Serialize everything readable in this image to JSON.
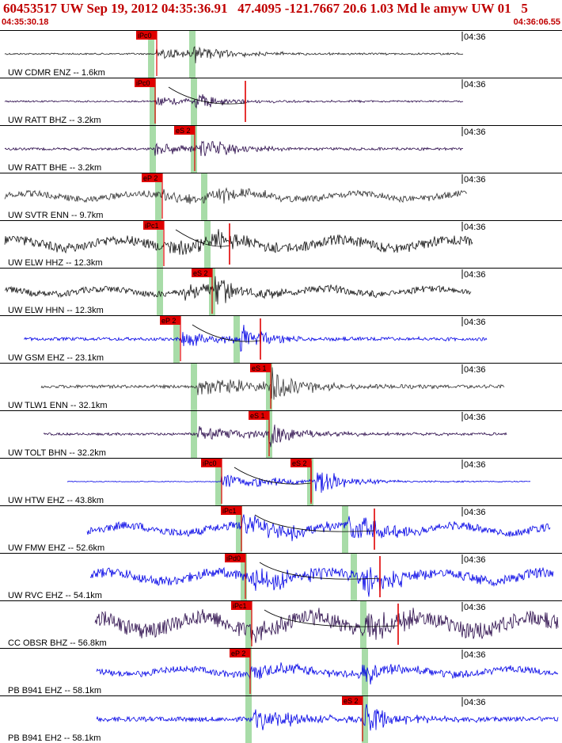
{
  "header": {
    "title": "60453517 UW Sep 19, 2012 04:35:36.91   47.4095 -121.7667 20.6 1.03 Md le amyw UW 01   5",
    "start_time": "04:35:30.18",
    "end_time": "04:36:06.55"
  },
  "minute_label": "04:36",
  "colors": {
    "pick": "#e00000",
    "window": "#a8dca8",
    "blue": "#0000e6",
    "purple": "#2a0a4a",
    "black": "#111111",
    "gray": "#333333"
  },
  "traces": [
    {
      "label": "UW CDMR ENZ -- 1.6km",
      "color": "#222222",
      "pick": "iPc0",
      "pickX": 198,
      "win": [
        191,
        243
      ],
      "sec": null,
      "secX": null,
      "start": 6,
      "end": 585,
      "onset": 198,
      "burst": 243,
      "amp": 12,
      "noise": 1,
      "curve": false
    },
    {
      "label": "UW RATT BHZ -- 3.2km",
      "color": "#2a0a4a",
      "pick": "iPc0",
      "pickX": 196,
      "win": [
        193,
        245
      ],
      "sec": null,
      "secX": 310,
      "start": 6,
      "end": 585,
      "onset": 196,
      "burst": 245,
      "amp": 10,
      "noise": 1,
      "curve": true
    },
    {
      "label": "UW RATT BHE -- 3.2km",
      "color": "#2a0a4a",
      "pick": "eS 2",
      "pickX": 246,
      "win": [
        193,
        245
      ],
      "sec": null,
      "secX": null,
      "start": 6,
      "end": 585,
      "onset": 196,
      "burst": 252,
      "amp": 14,
      "noise": 1.5,
      "curve": false
    },
    {
      "label": "UW SVTR ENN -- 9.7km",
      "color": "#333333",
      "pick": "eP 2",
      "pickX": 205,
      "win": [
        200,
        258
      ],
      "sec": null,
      "secX": null,
      "start": 6,
      "end": 590,
      "onset": 205,
      "burst": 262,
      "amp": 12,
      "noise": 4,
      "curve": false
    },
    {
      "label": "UW ELW HHZ -- 12.3km",
      "color": "#111111",
      "pick": "iPc1",
      "pickX": 207,
      "win": [
        202,
        262
      ],
      "sec": null,
      "secX": 290,
      "start": 6,
      "end": 597,
      "onset": 207,
      "burst": 266,
      "amp": 16,
      "noise": 6,
      "curve": true
    },
    {
      "label": "UW ELW HHN -- 12.3km",
      "color": "#111111",
      "pick": "eS 2",
      "pickX": 268,
      "win": [
        202,
        268
      ],
      "sec": null,
      "secX": null,
      "start": 6,
      "end": 595,
      "onset": 230,
      "burst": 272,
      "amp": 18,
      "noise": 4,
      "curve": false
    },
    {
      "label": "UW GSM EHZ -- 23.1km",
      "color": "#0000e6",
      "pick": "eP 2",
      "pickX": 228,
      "win": [
        223,
        299
      ],
      "sec": null,
      "secX": 329,
      "start": 30,
      "end": 615,
      "onset": 228,
      "burst": 304,
      "amp": 16,
      "noise": 2,
      "curve": true
    },
    {
      "label": "UW TLW1 ENN -- 32.1km",
      "color": "#333333",
      "pick": "eS 1",
      "pickX": 342,
      "win": [
        245,
        340
      ],
      "sec": null,
      "secX": null,
      "start": 52,
      "end": 637,
      "onset": 250,
      "burst": 342,
      "amp": 22,
      "noise": 2,
      "curve": false
    },
    {
      "label": "UW TOLT BHN -- 32.2km",
      "color": "#2a0a4a",
      "pick": "eS 1",
      "pickX": 340,
      "win": [
        245,
        340
      ],
      "sec": null,
      "secX": null,
      "start": 55,
      "end": 640,
      "onset": 250,
      "burst": 340,
      "amp": 16,
      "noise": 1.5,
      "curve": false
    },
    {
      "label": "UW HTW EHZ -- 43.8km",
      "color": "#0000e6",
      "pick": "iPc0",
      "pickX": 280,
      "win": [
        276,
        392
      ],
      "sec": "eS 2",
      "secX": 393,
      "start": 85,
      "end": 670,
      "onset": 280,
      "burst": 398,
      "amp": 18,
      "noise": 0.5,
      "curve": true
    },
    {
      "label": "UW FMW EHZ -- 52.6km",
      "color": "#0000e6",
      "pick": "iPc1",
      "pickX": 305,
      "win": [
        302,
        436
      ],
      "sec": null,
      "secX": 473,
      "start": 110,
      "end": 695,
      "onset": 305,
      "burst": 440,
      "amp": 22,
      "noise": 5,
      "curve": true
    },
    {
      "label": "UW RVC EHZ -- 54.1km",
      "color": "#0000e6",
      "pick": "iPd0",
      "pickX": 310,
      "win": [
        308,
        447
      ],
      "sec": null,
      "secX": 480,
      "start": 114,
      "end": 699,
      "onset": 310,
      "burst": 458,
      "amp": 22,
      "noise": 6,
      "curve": true
    },
    {
      "label": "CC OBSR BHZ -- 56.8km",
      "color": "#2a0a4a",
      "pick": "iPc1",
      "pickX": 318,
      "win": [
        314,
        459
      ],
      "sec": null,
      "secX": 503,
      "start": 120,
      "end": 705,
      "onset": 318,
      "burst": 462,
      "amp": 20,
      "noise": 10,
      "curve": true
    },
    {
      "label": "PB B941 EHZ -- 58.1km",
      "color": "#0000e6",
      "pick": "eP 2",
      "pickX": 316,
      "win": [
        314,
        461
      ],
      "sec": null,
      "secX": null,
      "start": 122,
      "end": 705,
      "onset": 316,
      "burst": 458,
      "amp": 18,
      "noise": 4,
      "curve": false
    },
    {
      "label": "PB B941 EH2 -- 58.1km",
      "color": "#0000e6",
      "pick": "eS 2",
      "pickX": 458,
      "win": [
        314,
        461
      ],
      "sec": null,
      "secX": null,
      "start": 122,
      "end": 705,
      "onset": 320,
      "burst": 458,
      "amp": 20,
      "noise": 3,
      "curve": false
    }
  ]
}
